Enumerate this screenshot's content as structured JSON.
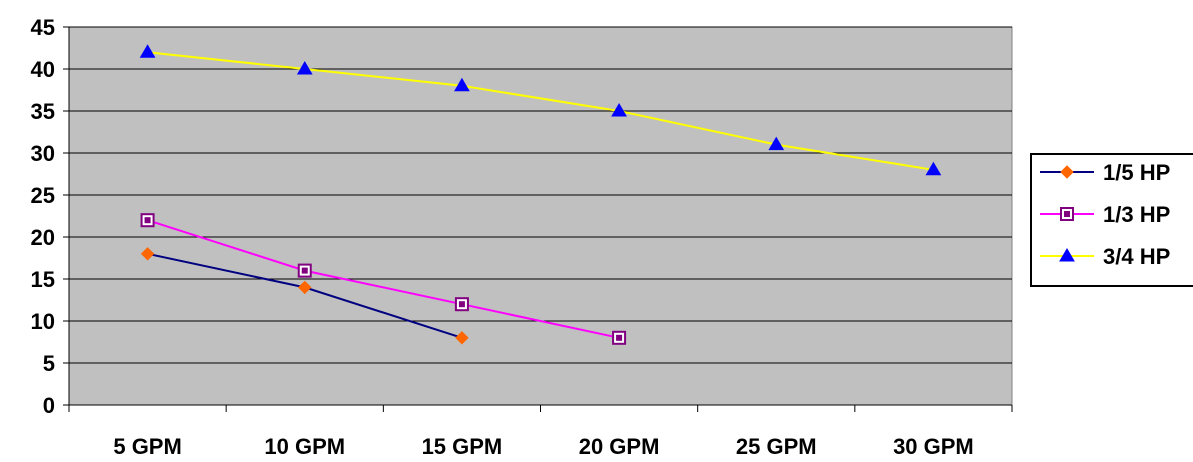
{
  "chart_data": {
    "type": "line",
    "title": "",
    "xlabel": "",
    "ylabel": "",
    "categories": [
      "5 GPM",
      "10 GPM",
      "15 GPM",
      "20 GPM",
      "25 GPM",
      "30 GPM"
    ],
    "ylim": [
      0,
      45
    ],
    "yticks": [
      "0",
      "5",
      "10",
      "15",
      "20",
      "25",
      "30",
      "35",
      "40",
      "45"
    ],
    "grid": true,
    "plot_background": "#C0C0C0",
    "legend_position": "right",
    "series": [
      {
        "name": "1/5 HP",
        "values": [
          18,
          14,
          8,
          null,
          null,
          null
        ],
        "line_color": "#000080",
        "marker": "diamond",
        "marker_color": "#FF6600"
      },
      {
        "name": "1/3 HP",
        "values": [
          22,
          16,
          12,
          8,
          null,
          null
        ],
        "line_color": "#FF00FF",
        "marker": "square",
        "marker_color": "#800080"
      },
      {
        "name": "3/4 HP",
        "values": [
          42,
          40,
          38,
          35,
          31,
          28
        ],
        "line_color": "#FFFF00",
        "marker": "triangle",
        "marker_color": "#0000FF"
      }
    ]
  }
}
